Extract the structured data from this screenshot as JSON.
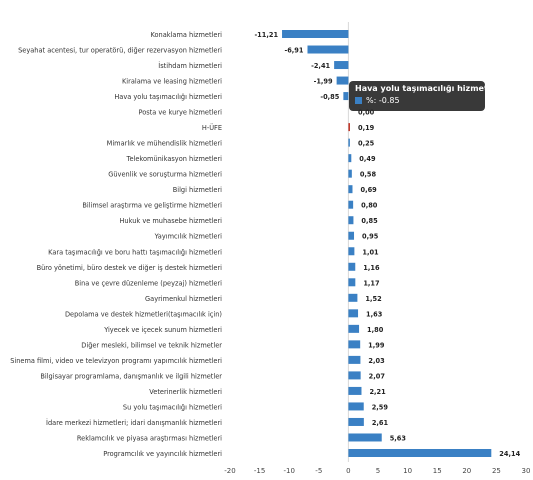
{
  "chart_data": {
    "type": "bar",
    "orientation": "horizontal",
    "categories": [
      "Konaklama hizmetleri",
      "Seyahat acentesi, tur operatörü, diğer rezervasyon hizmetleri",
      "İstihdam hizmetleri",
      "Kiralama ve leasing hizmetleri",
      "Hava yolu taşımacılığı hizmetleri",
      "Posta ve kurye hizmetleri",
      "H-ÜFE",
      "Mimarlık ve mühendislik hizmetleri",
      "Telekomünikasyon hizmetleri",
      "Güvenlik ve soruşturma hizmetleri",
      "Bilgi hizmetleri",
      "Bilimsel araştırma ve geliştirme hizmetleri",
      "Hukuk ve muhasebe hizmetleri",
      "Yayımcılık hizmetleri",
      "Kara taşımacılığı ve boru hattı taşımacılığı hizmetleri",
      "Büro yönetimi, büro destek ve diğer iş destek hizmetleri",
      "Bina ve çevre düzenleme (peyzaj) hizmetleri",
      "Gayrimenkul hizmetleri",
      "Depolama ve destek hizmetleri(taşımacılık için)",
      "Yiyecek ve içecek sunum hizmetleri",
      "Diğer mesleki, bilimsel ve teknik hizmetler",
      "Sinema filmi, video ve televizyon programı yapımcılık hizmetleri",
      "Bilgisayar programlama, danışmanlık ve ilgili hizmetler",
      "Veterinerlik hizmetleri",
      "Su yolu taşımacılığı hizmetleri",
      "İdare merkezi hizmetleri; idari danışmanlık hizmetleri",
      "Reklamcılık ve piyasa araştırması hizmetleri",
      "Programcılık ve yayıncılık hizmetleri"
    ],
    "values": [
      -11.21,
      -6.91,
      -2.41,
      -1.99,
      -0.85,
      0.0,
      0.19,
      0.25,
      0.49,
      0.58,
      0.69,
      0.8,
      0.85,
      0.95,
      1.01,
      1.16,
      1.17,
      1.52,
      1.63,
      1.8,
      1.99,
      2.03,
      2.07,
      2.21,
      2.59,
      2.61,
      5.63,
      24.14
    ],
    "value_labels": [
      "-11,21",
      "-6,91",
      "-2,41",
      "-1,99",
      "-0,85",
      "0,00",
      "0,19",
      "0,25",
      "0,49",
      "0,58",
      "0,69",
      "0,80",
      "0,85",
      "0,95",
      "1,01",
      "1,16",
      "1,17",
      "1,52",
      "1,63",
      "1,80",
      "1,99",
      "2,03",
      "2,07",
      "2,21",
      "2,59",
      "2,61",
      "5,63",
      "24,14"
    ],
    "highlight_category": "H-ÜFE",
    "xlim": [
      -20,
      30
    ],
    "xticks": [
      -20,
      -15,
      -10,
      -5,
      0,
      5,
      10,
      15,
      20,
      25,
      30
    ],
    "bar_color": "#3a80c4",
    "highlight_color": "#c0392b",
    "grid": false
  },
  "tooltip": {
    "title": "Hava yolu taşımacılığı hizmetleri",
    "value_text": "%: -0.85"
  }
}
